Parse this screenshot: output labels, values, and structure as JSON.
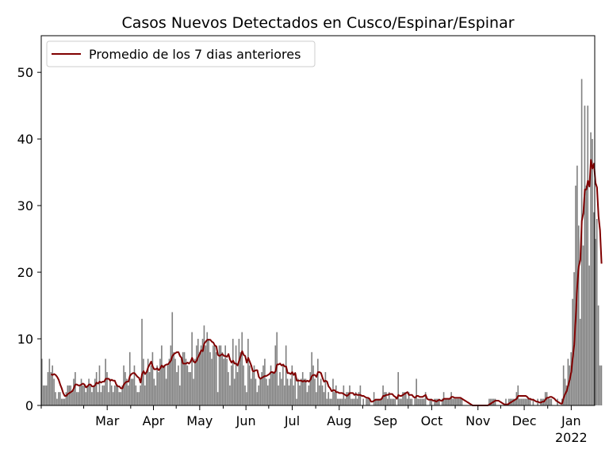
{
  "chart_data": {
    "type": "bar",
    "title": "Casos Nuevos Detectados en Cusco/Espinar/Espinar",
    "xlabel": "",
    "ylabel": "",
    "x_start": "2021-02-01",
    "x_end": "2022-01-31",
    "ylim": [
      0,
      55.5
    ],
    "yticks": [
      0,
      10,
      20,
      30,
      40,
      50
    ],
    "xticks": [
      {
        "date": "2021-03-01",
        "label": "Mar"
      },
      {
        "date": "2021-04-01",
        "label": "Apr"
      },
      {
        "date": "2021-05-01",
        "label": "May"
      },
      {
        "date": "2021-06-01",
        "label": "Jun"
      },
      {
        "date": "2021-07-01",
        "label": "Jul"
      },
      {
        "date": "2021-08-01",
        "label": "Aug"
      },
      {
        "date": "2021-09-01",
        "label": "Sep"
      },
      {
        "date": "2021-10-01",
        "label": "Oct"
      },
      {
        "date": "2021-11-01",
        "label": "Nov"
      },
      {
        "date": "2021-12-01",
        "label": "Dec"
      },
      {
        "date": "2022-01-01",
        "label": "Jan",
        "sublabel": "2022"
      }
    ],
    "legend": {
      "position": "top-left",
      "entries": [
        {
          "label": "Promedio de los 7 dias anteriores",
          "color": "#800000"
        }
      ]
    },
    "bar_color": "#808080",
    "line_color": "#800000",
    "daily_counts": [
      7,
      3,
      3,
      3,
      5,
      7,
      5,
      6,
      4,
      2,
      1,
      2,
      2,
      1,
      1,
      1,
      2,
      3,
      3,
      3,
      2,
      4,
      5,
      2,
      2,
      3,
      4,
      3,
      3,
      2,
      3,
      4,
      3,
      2,
      3,
      4,
      5,
      2,
      6,
      2,
      3,
      3,
      7,
      5,
      2,
      4,
      3,
      2,
      3,
      3,
      3,
      2,
      2,
      3,
      6,
      5,
      4,
      3,
      8,
      4,
      4,
      6,
      3,
      2,
      2,
      3,
      13,
      7,
      3,
      5,
      7,
      5,
      6,
      8,
      4,
      3,
      6,
      5,
      7,
      9,
      6,
      6,
      4,
      6,
      7,
      9,
      14,
      8,
      7,
      5,
      6,
      3,
      7,
      8,
      8,
      7,
      6,
      5,
      5,
      11,
      4,
      7,
      9,
      10,
      8,
      9,
      10,
      12,
      9,
      11,
      10,
      8,
      7,
      9,
      9,
      8,
      2,
      9,
      9,
      8,
      7,
      9,
      7,
      5,
      3,
      6,
      10,
      4,
      9,
      5,
      10,
      8,
      11,
      6,
      3,
      2,
      10,
      6,
      4,
      5,
      6,
      4,
      2,
      3,
      4,
      5,
      6,
      7,
      4,
      3,
      4,
      6,
      5,
      5,
      9,
      11,
      3,
      5,
      4,
      6,
      3,
      9,
      4,
      3,
      4,
      6,
      3,
      5,
      1,
      4,
      3,
      4,
      5,
      4,
      4,
      2,
      3,
      5,
      8,
      6,
      4,
      2,
      7,
      3,
      4,
      3,
      2,
      5,
      1,
      2,
      1,
      1,
      4,
      2,
      3,
      1,
      1,
      1,
      1,
      3,
      1,
      2,
      2,
      3,
      1,
      1,
      1,
      2,
      1,
      2,
      3,
      0,
      1,
      0,
      1,
      1,
      1,
      0,
      0,
      2,
      1,
      1,
      1,
      1,
      1,
      3,
      2,
      2,
      1,
      2,
      1,
      1,
      1,
      1,
      0,
      5,
      1,
      1,
      2,
      2,
      2,
      1,
      2,
      1,
      1,
      0,
      1,
      4,
      1,
      1,
      1,
      1,
      1,
      2,
      0,
      0,
      1,
      1,
      0,
      1,
      1,
      1,
      1,
      0,
      1,
      2,
      1,
      1,
      1,
      1,
      2,
      1,
      1,
      1,
      1,
      1,
      1,
      1,
      0,
      0,
      0,
      0,
      0,
      0,
      0,
      0,
      0,
      0,
      0,
      0,
      0,
      0,
      0,
      0,
      0,
      1,
      1,
      1,
      1,
      1,
      0,
      0,
      0,
      0,
      0,
      0,
      1,
      0,
      1,
      1,
      1,
      1,
      1,
      2,
      3,
      1,
      1,
      1,
      1,
      1,
      1,
      1,
      1,
      0,
      1,
      0,
      0,
      1,
      0,
      1,
      1,
      1,
      2,
      2,
      1,
      1,
      1,
      0,
      0,
      0,
      1,
      0,
      0,
      1,
      6,
      4,
      3,
      7,
      6,
      8,
      16,
      20,
      33,
      36,
      27,
      13,
      49,
      24,
      45,
      33,
      45,
      21,
      41,
      40,
      29,
      25,
      28,
      15,
      6,
      6
    ]
  }
}
